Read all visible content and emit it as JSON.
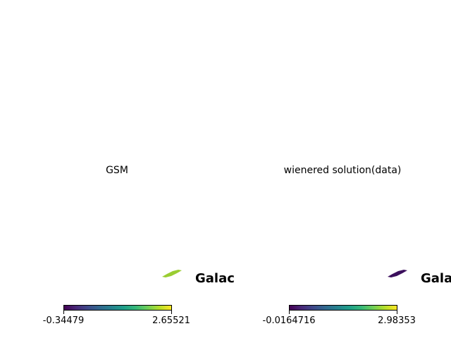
{
  "chart_data": [
    {
      "type": "heatmap",
      "title": "GSM",
      "overlay_text": "Galac",
      "colormap": "viridis",
      "colorbar": {
        "min": -0.34479,
        "max": 2.65521,
        "min_label": "-0.34479",
        "max_label": "2.65521"
      },
      "blob_color": "#9acd32"
    },
    {
      "type": "heatmap",
      "title": "wienered solution(data)",
      "overlay_text": "Gala",
      "colormap": "viridis",
      "colorbar": {
        "min": -0.0164716,
        "max": 2.98353,
        "min_label": "-0.0164716",
        "max_label": "2.98353"
      },
      "blob_color": "#3b0f5c"
    }
  ]
}
